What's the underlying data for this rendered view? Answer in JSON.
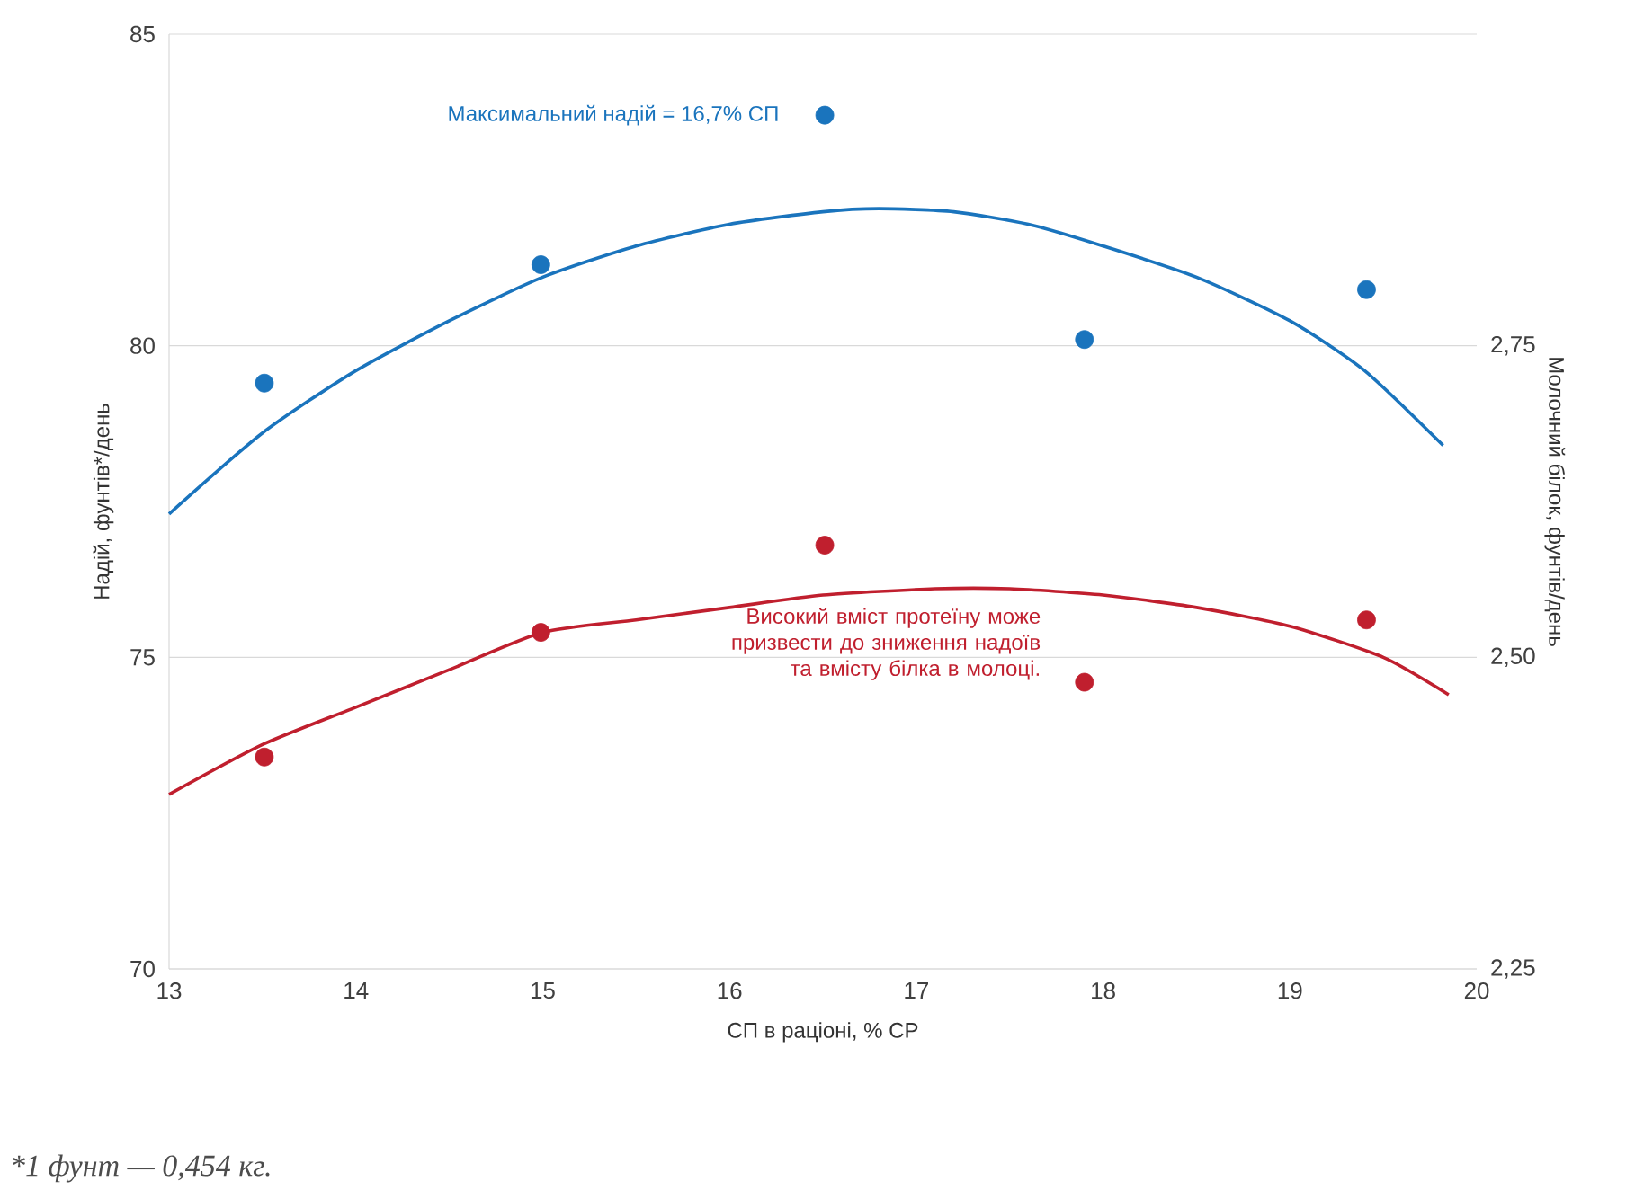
{
  "chart_data": {
    "type": "scatter",
    "xlabel": "СП в раціоні, % СР",
    "ylabel": "Надій, фунтів*/день",
    "y2label": "Молочний білок, фунтів/день",
    "xlim": [
      13,
      20
    ],
    "xticks": [
      13,
      14,
      15,
      16,
      17,
      18,
      19,
      20
    ],
    "ylim": [
      70,
      85
    ],
    "yticks": [
      70,
      75,
      80,
      85
    ],
    "y2lim": [
      2.25,
      3.0
    ],
    "y2ticks": [
      {
        "value": 2.25,
        "label": "2,25"
      },
      {
        "value": 2.5,
        "label": "2,50"
      },
      {
        "value": 2.75,
        "label": "2,75"
      }
    ],
    "grid": "y",
    "series": [
      {
        "marker": "circle",
        "color": "#1a74bd",
        "x": [
          13.51,
          14.99,
          16.51,
          17.9,
          19.41
        ],
        "values": [
          79.4,
          81.3,
          83.7,
          80.1,
          80.9
        ]
      },
      {
        "type": "line",
        "color": "#1a74bd",
        "x": [
          13.0,
          13.5,
          14,
          14.5,
          15,
          15.5,
          16,
          16.5,
          16.8,
          17.2,
          17.6,
          18,
          18.5,
          19,
          19.4,
          19.82
        ],
        "values": [
          77.3,
          78.6,
          79.6,
          80.4,
          81.1,
          81.6,
          81.95,
          82.15,
          82.2,
          82.15,
          81.95,
          81.6,
          81.1,
          80.4,
          79.6,
          78.4
        ]
      },
      {
        "marker": "circle",
        "axis": "y2",
        "color": "#c01f2e",
        "x": [
          13.51,
          14.99,
          16.51,
          17.9,
          19.41
        ],
        "values": [
          2.42,
          2.52,
          2.59,
          2.48,
          2.53
        ]
      },
      {
        "type": "line",
        "axis": "y2",
        "color": "#c01f2e",
        "x": [
          13.0,
          13.5,
          14,
          14.5,
          15,
          15.5,
          16,
          16.5,
          17.1,
          17.5,
          18,
          18.5,
          19,
          19.5,
          19.85
        ],
        "values": [
          2.39,
          2.43,
          2.46,
          2.49,
          2.52,
          2.53,
          2.54,
          2.55,
          2.555,
          2.555,
          2.55,
          2.54,
          2.525,
          2.5,
          2.47
        ]
      }
    ],
    "annotations": [
      "Максимальний надій = 16,7% СП",
      "Високий вміст протеїну може призвести до зниження надоїв та вмісту білка в молоці.",
      "*1 фунт — 0,454 кг."
    ]
  }
}
